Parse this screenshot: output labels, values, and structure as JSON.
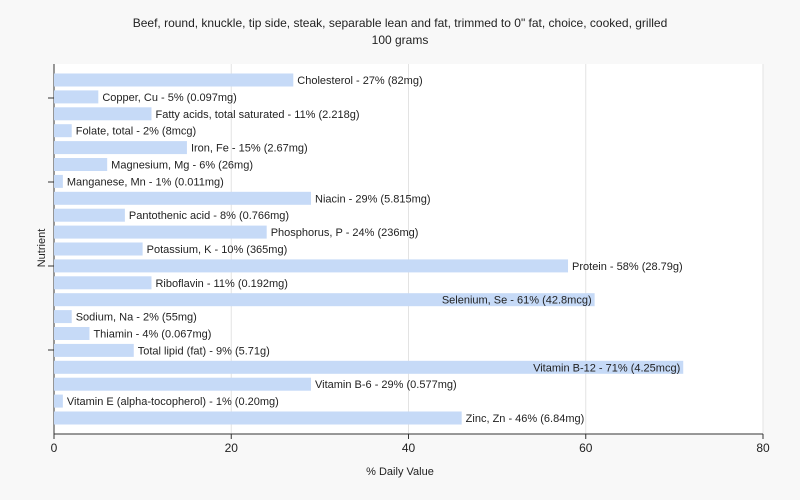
{
  "chart_data": {
    "type": "bar",
    "orientation": "horizontal",
    "title": "Beef, round, knuckle, tip side, steak, separable lean and fat, trimmed to 0\" fat, choice, cooked, grilled",
    "subtitle": "100 grams",
    "xlabel": "% Daily Value",
    "ylabel": "Nutrient",
    "xlim": [
      0,
      80
    ],
    "xticks": [
      0,
      20,
      40,
      60,
      80
    ],
    "grid": true,
    "bar_color": "#c6daf7",
    "categories": [
      "Cholesterol",
      "Copper, Cu",
      "Fatty acids, total saturated",
      "Folate, total",
      "Iron, Fe",
      "Magnesium, Mg",
      "Manganese, Mn",
      "Niacin",
      "Pantothenic acid",
      "Phosphorus, P",
      "Potassium, K",
      "Protein",
      "Riboflavin",
      "Selenium, Se",
      "Sodium, Na",
      "Thiamin",
      "Total lipid (fat)",
      "Vitamin B-12",
      "Vitamin B-6",
      "Vitamin E (alpha-tocopherol)",
      "Zinc, Zn"
    ],
    "values": [
      27,
      5,
      11,
      2,
      15,
      6,
      1,
      29,
      8,
      24,
      10,
      58,
      11,
      61,
      2,
      4,
      9,
      71,
      29,
      1,
      46
    ],
    "labels": [
      "Cholesterol - 27% (82mg)",
      "Copper, Cu - 5% (0.097mg)",
      "Fatty acids, total saturated - 11% (2.218g)",
      "Folate, total - 2% (8mcg)",
      "Iron, Fe - 15% (2.67mg)",
      "Magnesium, Mg - 6% (26mg)",
      "Manganese, Mn - 1% (0.011mg)",
      "Niacin - 29% (5.815mg)",
      "Pantothenic acid - 8% (0.766mg)",
      "Phosphorus, P - 24% (236mg)",
      "Potassium, K - 10% (365mg)",
      "Protein - 58% (28.79g)",
      "Riboflavin - 11% (0.192mg)",
      "Selenium, Se - 61% (42.8mcg)",
      "Sodium, Na - 2% (55mg)",
      "Thiamin - 4% (0.067mg)",
      "Total lipid (fat) - 9% (5.71g)",
      "Vitamin B-12 - 71% (4.25mcg)",
      "Vitamin B-6 - 29% (0.577mg)",
      "Vitamin E (alpha-tocopherol) - 1% (0.20mg)",
      "Zinc, Zn - 46% (6.84mg)"
    ]
  }
}
